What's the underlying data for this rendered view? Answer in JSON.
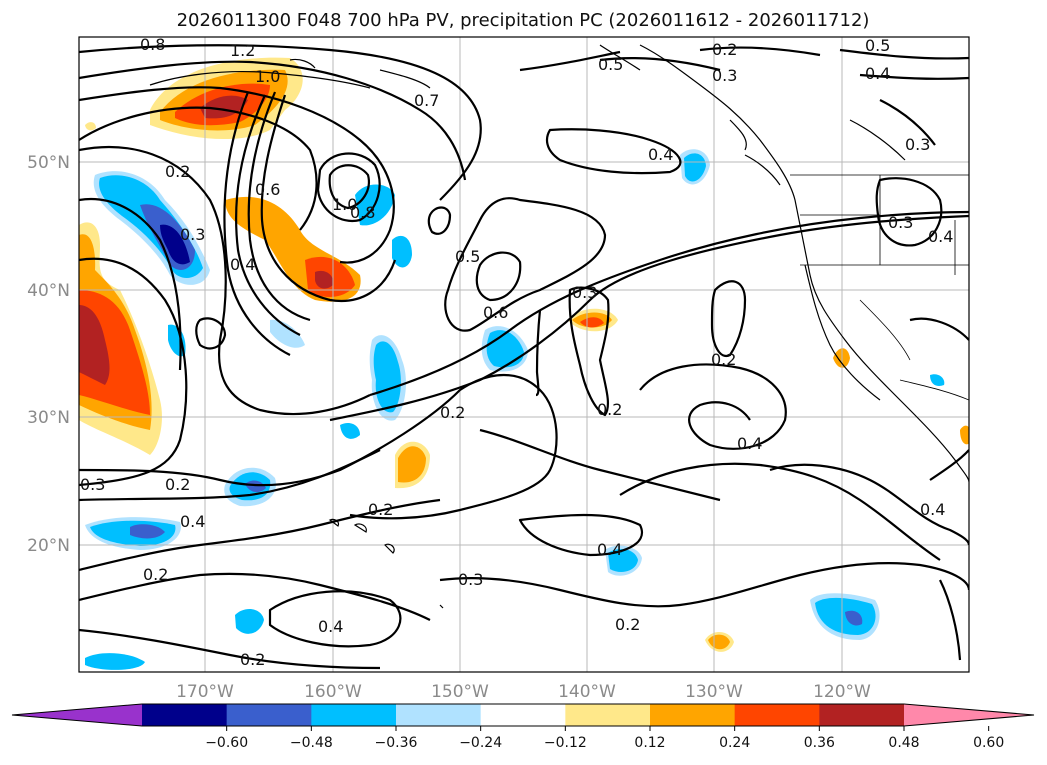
{
  "title": "2026011300 F048 700 hPa PV, precipitation PC (2026011612 - 2026011712)",
  "lat_labels": [
    "50°N",
    "40°N",
    "30°N",
    "20°N"
  ],
  "lon_labels": [
    "170°W",
    "160°W",
    "150°W",
    "140°W",
    "130°W",
    "120°W"
  ],
  "colorbar": {
    "ticks": [
      "−0.60",
      "−0.48",
      "−0.36",
      "−0.24",
      "−0.12",
      "0.12",
      "0.24",
      "0.36",
      "0.48",
      "0.60"
    ],
    "colors": [
      "#9932cc",
      "#00008b",
      "#3a5fcd",
      "#00bfff",
      "#b0e2ff",
      "#ffffff",
      "#ffe88a",
      "#ffa500",
      "#ff4500",
      "#b22222",
      "#ff88aa"
    ]
  },
  "contour_labels": [
    "0.8",
    "1.2",
    "1.0",
    "0.7",
    "0.5",
    "0.2",
    "0.3",
    "0.5",
    "0.4",
    "0.4",
    "0.3",
    "0.2",
    "0.6",
    "1.0",
    "0.8",
    "0.3",
    "0.4",
    "0.5",
    "0.6",
    "0.3",
    "0.2",
    "0.2",
    "0.4",
    "0.3",
    "0.2",
    "0.2",
    "0.4",
    "0.2",
    "0.4",
    "0.3",
    "0.4",
    "0.2",
    "0.2",
    "0.2",
    "0.4",
    "0.3",
    "0.4"
  ]
}
